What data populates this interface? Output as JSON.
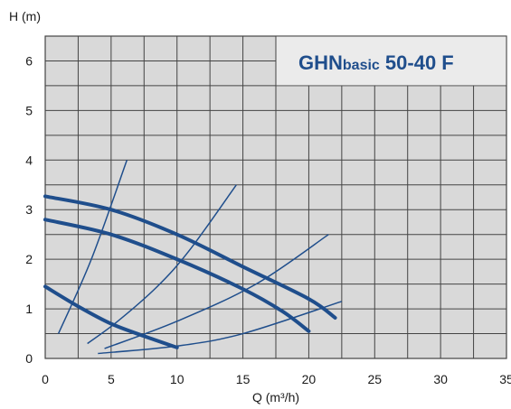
{
  "chart_data": {
    "type": "line",
    "title_prefix": "GHN",
    "title_mid": "basic",
    "title_suffix": " 50-40 F",
    "xlabel": "Q (m³/h)",
    "ylabel": "H (m)",
    "xlim": [
      0,
      35
    ],
    "ylim": [
      0,
      6.5
    ],
    "x_ticks": [
      "0",
      "5",
      "10",
      "15",
      "20",
      "25",
      "30",
      "35"
    ],
    "y_ticks": [
      "0",
      "1",
      "2",
      "3",
      "4",
      "5",
      "6"
    ],
    "grid": true,
    "pump_curves": [
      {
        "points": [
          [
            0,
            3.27
          ],
          [
            5,
            3.0
          ],
          [
            10,
            2.5
          ],
          [
            15,
            1.85
          ],
          [
            20,
            1.2
          ],
          [
            22,
            0.82
          ]
        ]
      },
      {
        "points": [
          [
            0,
            2.8
          ],
          [
            5,
            2.5
          ],
          [
            10,
            2.0
          ],
          [
            15,
            1.4
          ],
          [
            18,
            0.95
          ],
          [
            20,
            0.55
          ]
        ]
      },
      {
        "points": [
          [
            0,
            1.45
          ],
          [
            2.5,
            1.05
          ],
          [
            5,
            0.7
          ],
          [
            7.5,
            0.45
          ],
          [
            10,
            0.22
          ]
        ]
      }
    ],
    "system_curves": [
      {
        "points": [
          [
            1,
            0.5
          ],
          [
            3.5,
            2.0
          ],
          [
            6.2,
            4.0
          ]
        ]
      },
      {
        "points": [
          [
            3.2,
            0.3
          ],
          [
            5.5,
            0.75
          ],
          [
            8.5,
            1.45
          ],
          [
            11,
            2.2
          ],
          [
            14.5,
            3.5
          ]
        ]
      },
      {
        "points": [
          [
            4.5,
            0.2
          ],
          [
            10,
            0.75
          ],
          [
            16,
            1.5
          ],
          [
            21.5,
            2.5
          ]
        ]
      },
      {
        "points": [
          [
            4,
            0.1
          ],
          [
            10,
            0.25
          ],
          [
            15,
            0.5
          ],
          [
            22.5,
            1.15
          ]
        ]
      }
    ],
    "colors": {
      "curve": "#1f4e8c",
      "grid": "#444444",
      "plot_bg": "#d9d9d9",
      "title_bg": "#ebebeb"
    }
  }
}
